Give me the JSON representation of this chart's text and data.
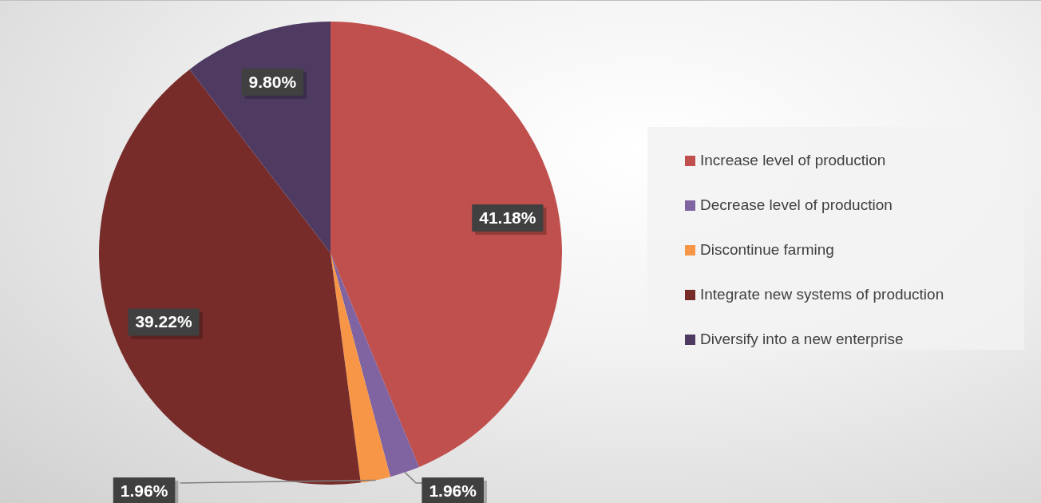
{
  "chart_data": {
    "type": "pie",
    "categories": [
      "Increase level of production",
      "Decrease level of production",
      "Discontinue farming",
      "Integrate new systems of production",
      "Diversify into a new enterprise"
    ],
    "values": [
      41.18,
      1.96,
      1.96,
      39.22,
      9.8
    ],
    "value_labels": [
      "41.18%",
      "1.96%",
      "1.96%",
      "39.22%",
      "9.80%"
    ],
    "colors": [
      "#c0504d",
      "#8064a2",
      "#f79646",
      "#772c2a",
      "#4f3b62"
    ],
    "legend": "right"
  }
}
